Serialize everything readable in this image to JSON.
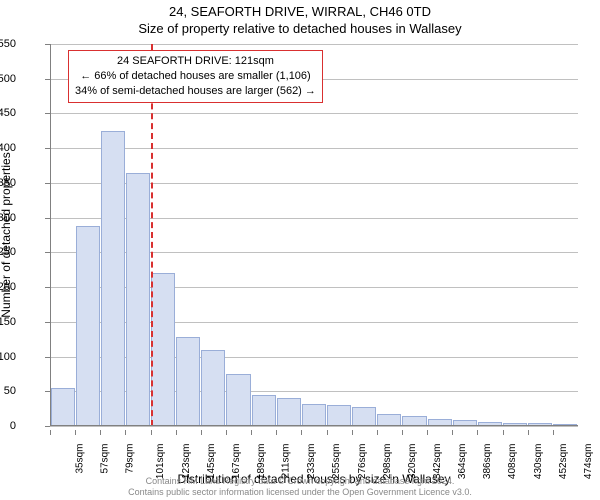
{
  "title_line1": "24, SEAFORTH DRIVE, WIRRAL, CH46 0TD",
  "title_line2": "Size of property relative to detached houses in Wallasey",
  "y_axis_title": "Number of detached properties",
  "x_axis_title": "Distribution of detached houses by size in Wallasey",
  "footer_line1": "Contains HM Land Registry data © Crown copyright and database right 2024.",
  "footer_line2": "Contains public sector information licensed under the Open Government Licence v3.0.",
  "footer_color": "#888888",
  "chart": {
    "type": "histogram",
    "ylim": [
      0,
      550
    ],
    "ytick_step": 50,
    "background_color": "#ffffff",
    "grid_color": "#c0c0c0",
    "axis_color": "#808080",
    "bar_fill": "#d6dff2",
    "bar_stroke": "#9aaed8",
    "x_labels": [
      "35sqm",
      "57sqm",
      "79sqm",
      "101sqm",
      "123sqm",
      "145sqm",
      "167sqm",
      "189sqm",
      "211sqm",
      "233sqm",
      "255sqm",
      "276sqm",
      "298sqm",
      "320sqm",
      "342sqm",
      "364sqm",
      "386sqm",
      "408sqm",
      "430sqm",
      "452sqm",
      "474sqm"
    ],
    "bar_values": [
      55,
      288,
      425,
      364,
      220,
      128,
      110,
      75,
      45,
      40,
      32,
      30,
      28,
      18,
      14,
      10,
      8,
      6,
      5,
      4,
      3
    ],
    "reference": {
      "x_index": 4,
      "color": "#d93030",
      "box_border": "#d93030",
      "lines": [
        "24 SEAFORTH DRIVE: 121sqm",
        "← 66% of detached houses are smaller (1,106)",
        "34% of semi-detached houses are larger (562) →"
      ]
    }
  }
}
